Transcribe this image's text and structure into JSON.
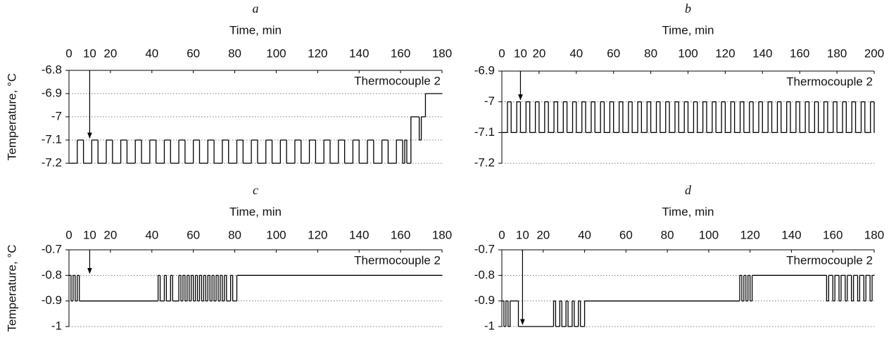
{
  "chart_data": [
    {
      "type": "step",
      "title": "a",
      "xlabel": "Time, min",
      "ylabel": "Temperature, °C",
      "annotation": "Thermocouple 2",
      "arrow": {
        "x": 10,
        "y": -7.1
      },
      "x": [
        0,
        4,
        7,
        11,
        14,
        18,
        21,
        25,
        28,
        32,
        35,
        39,
        42,
        46,
        49,
        53,
        56,
        60,
        63,
        67,
        70,
        74,
        77,
        81,
        84,
        88,
        91,
        95,
        98,
        102,
        105,
        109,
        112,
        116,
        119,
        123,
        126,
        130,
        133,
        137,
        140,
        144,
        147,
        151,
        154,
        158,
        161,
        162,
        163,
        165,
        169,
        170,
        172,
        180
      ],
      "values": [
        -7.2,
        -7.1,
        -7.2,
        -7.1,
        -7.2,
        -7.1,
        -7.2,
        -7.1,
        -7.2,
        -7.1,
        -7.2,
        -7.1,
        -7.2,
        -7.1,
        -7.2,
        -7.1,
        -7.2,
        -7.1,
        -7.2,
        -7.1,
        -7.2,
        -7.1,
        -7.2,
        -7.1,
        -7.2,
        -7.1,
        -7.2,
        -7.1,
        -7.2,
        -7.1,
        -7.2,
        -7.1,
        -7.2,
        -7.1,
        -7.2,
        -7.1,
        -7.2,
        -7.1,
        -7.2,
        -7.1,
        -7.2,
        -7.1,
        -7.2,
        -7.1,
        -7.2,
        -7.1,
        -7.2,
        -7.1,
        -7.2,
        -7.0,
        -7.1,
        -7.0,
        -6.9,
        -6.9
      ],
      "color": "#000000",
      "xlim": [
        0,
        180
      ],
      "xticks": [
        0,
        10,
        20,
        40,
        60,
        80,
        100,
        120,
        140,
        160,
        180
      ],
      "ylim": [
        -7.2,
        -6.8
      ],
      "yticks": [
        -7.2,
        -7.1,
        -7.0,
        -6.9,
        -6.8
      ],
      "grid": true
    },
    {
      "type": "step",
      "title": "b",
      "xlabel": "Time, min",
      "annotation": "Thermocouple 2",
      "arrow": {
        "x": 10,
        "y": -7.0
      },
      "x": [
        0,
        3,
        5,
        8,
        10,
        13,
        15,
        18,
        20,
        23,
        25,
        28,
        30,
        33,
        35,
        38,
        40,
        43,
        45,
        48,
        50,
        53,
        55,
        58,
        60,
        63,
        65,
        68,
        70,
        73,
        75,
        78,
        80,
        83,
        85,
        88,
        90,
        93,
        95,
        98,
        100,
        103,
        105,
        108,
        110,
        113,
        115,
        118,
        120,
        123,
        125,
        128,
        130,
        133,
        135,
        138,
        140,
        143,
        145,
        148,
        150,
        153,
        155,
        158,
        160,
        163,
        165,
        168,
        170,
        173,
        175,
        178,
        180,
        183,
        185,
        188,
        190,
        193,
        195,
        198,
        200
      ],
      "values": [
        -7.1,
        -7.0,
        -7.1,
        -7.0,
        -7.1,
        -7.0,
        -7.1,
        -7.0,
        -7.1,
        -7.0,
        -7.1,
        -7.0,
        -7.1,
        -7.0,
        -7.1,
        -7.0,
        -7.1,
        -7.0,
        -7.1,
        -7.0,
        -7.1,
        -7.0,
        -7.1,
        -7.0,
        -7.1,
        -7.0,
        -7.1,
        -7.0,
        -7.1,
        -7.0,
        -7.1,
        -7.0,
        -7.1,
        -7.0,
        -7.1,
        -7.0,
        -7.1,
        -7.0,
        -7.1,
        -7.0,
        -7.1,
        -7.0,
        -7.1,
        -7.0,
        -7.1,
        -7.0,
        -7.1,
        -7.0,
        -7.1,
        -7.0,
        -7.1,
        -7.0,
        -7.1,
        -7.0,
        -7.1,
        -7.0,
        -7.1,
        -7.0,
        -7.1,
        -7.0,
        -7.1,
        -7.0,
        -7.1,
        -7.0,
        -7.1,
        -7.0,
        -7.1,
        -7.0,
        -7.1,
        -7.0,
        -7.1,
        -7.0,
        -7.1,
        -7.0,
        -7.1,
        -7.0,
        -7.1,
        -7.0,
        -7.1,
        -7.0,
        -7.1
      ],
      "color": "#000000",
      "xlim": [
        0,
        200
      ],
      "xticks": [
        0,
        10,
        20,
        40,
        60,
        80,
        100,
        120,
        140,
        160,
        180,
        200
      ],
      "ylim": [
        -7.2,
        -6.9
      ],
      "yticks": [
        -7.2,
        -7.1,
        -7.0,
        -6.9
      ],
      "grid": true
    },
    {
      "type": "step",
      "title": "c",
      "xlabel": "Time, min",
      "ylabel": "Temperature, °C",
      "annotation": "Thermocouple 2",
      "arrow": {
        "x": 10,
        "y": -0.8
      },
      "x": [
        0,
        1,
        2,
        3,
        4,
        5,
        43,
        44,
        46,
        47,
        49,
        50,
        53,
        54,
        55,
        56,
        57,
        58,
        59,
        60,
        61,
        62,
        63,
        64,
        65,
        66,
        67,
        68,
        69,
        70,
        71,
        72,
        73,
        74,
        75,
        76,
        78,
        79,
        81,
        180
      ],
      "values": [
        -0.8,
        -0.9,
        -0.8,
        -0.9,
        -0.8,
        -0.9,
        -0.8,
        -0.9,
        -0.8,
        -0.9,
        -0.8,
        -0.9,
        -0.8,
        -0.9,
        -0.8,
        -0.9,
        -0.8,
        -0.9,
        -0.8,
        -0.9,
        -0.8,
        -0.9,
        -0.8,
        -0.9,
        -0.8,
        -0.9,
        -0.8,
        -0.9,
        -0.8,
        -0.9,
        -0.8,
        -0.9,
        -0.8,
        -0.9,
        -0.8,
        -0.9,
        -0.8,
        -0.9,
        -0.8,
        -0.8
      ],
      "color": "#000000",
      "xlim": [
        0,
        180
      ],
      "xticks": [
        0,
        10,
        20,
        40,
        60,
        80,
        100,
        120,
        140,
        160,
        180
      ],
      "ylim": [
        -1.0,
        -0.7
      ],
      "yticks": [
        -1.0,
        -0.9,
        -0.8,
        -0.7
      ],
      "grid": true
    },
    {
      "type": "step",
      "title": "d",
      "xlabel": "Time, min",
      "annotation": "Thermocouple 2",
      "arrow": {
        "x": 10,
        "y": -1.0
      },
      "x": [
        0,
        1,
        2,
        3,
        4,
        8,
        25,
        26,
        28,
        29,
        31,
        32,
        34,
        35,
        37,
        38,
        40,
        115,
        116,
        117,
        118,
        119,
        120,
        121,
        157,
        158,
        160,
        161,
        163,
        164,
        166,
        167,
        169,
        170,
        172,
        173,
        175,
        176,
        178,
        179,
        180
      ],
      "values": [
        -0.9,
        -1.0,
        -0.9,
        -1.0,
        -0.9,
        -1.0,
        -0.9,
        -1.0,
        -0.9,
        -1.0,
        -0.9,
        -1.0,
        -0.9,
        -1.0,
        -0.9,
        -1.0,
        -0.9,
        -0.8,
        -0.9,
        -0.8,
        -0.9,
        -0.8,
        -0.9,
        -0.8,
        -0.9,
        -0.8,
        -0.9,
        -0.8,
        -0.9,
        -0.8,
        -0.9,
        -0.8,
        -0.9,
        -0.8,
        -0.9,
        -0.8,
        -0.9,
        -0.8,
        -0.9,
        -0.8,
        -0.8
      ],
      "color": "#000000",
      "xlim": [
        0,
        180
      ],
      "xticks": [
        0,
        10,
        20,
        40,
        60,
        80,
        100,
        120,
        140,
        160,
        180
      ],
      "ylim": [
        -1.0,
        -0.7
      ],
      "yticks": [
        -1.0,
        -0.9,
        -0.8,
        -0.7
      ],
      "grid": true
    }
  ]
}
